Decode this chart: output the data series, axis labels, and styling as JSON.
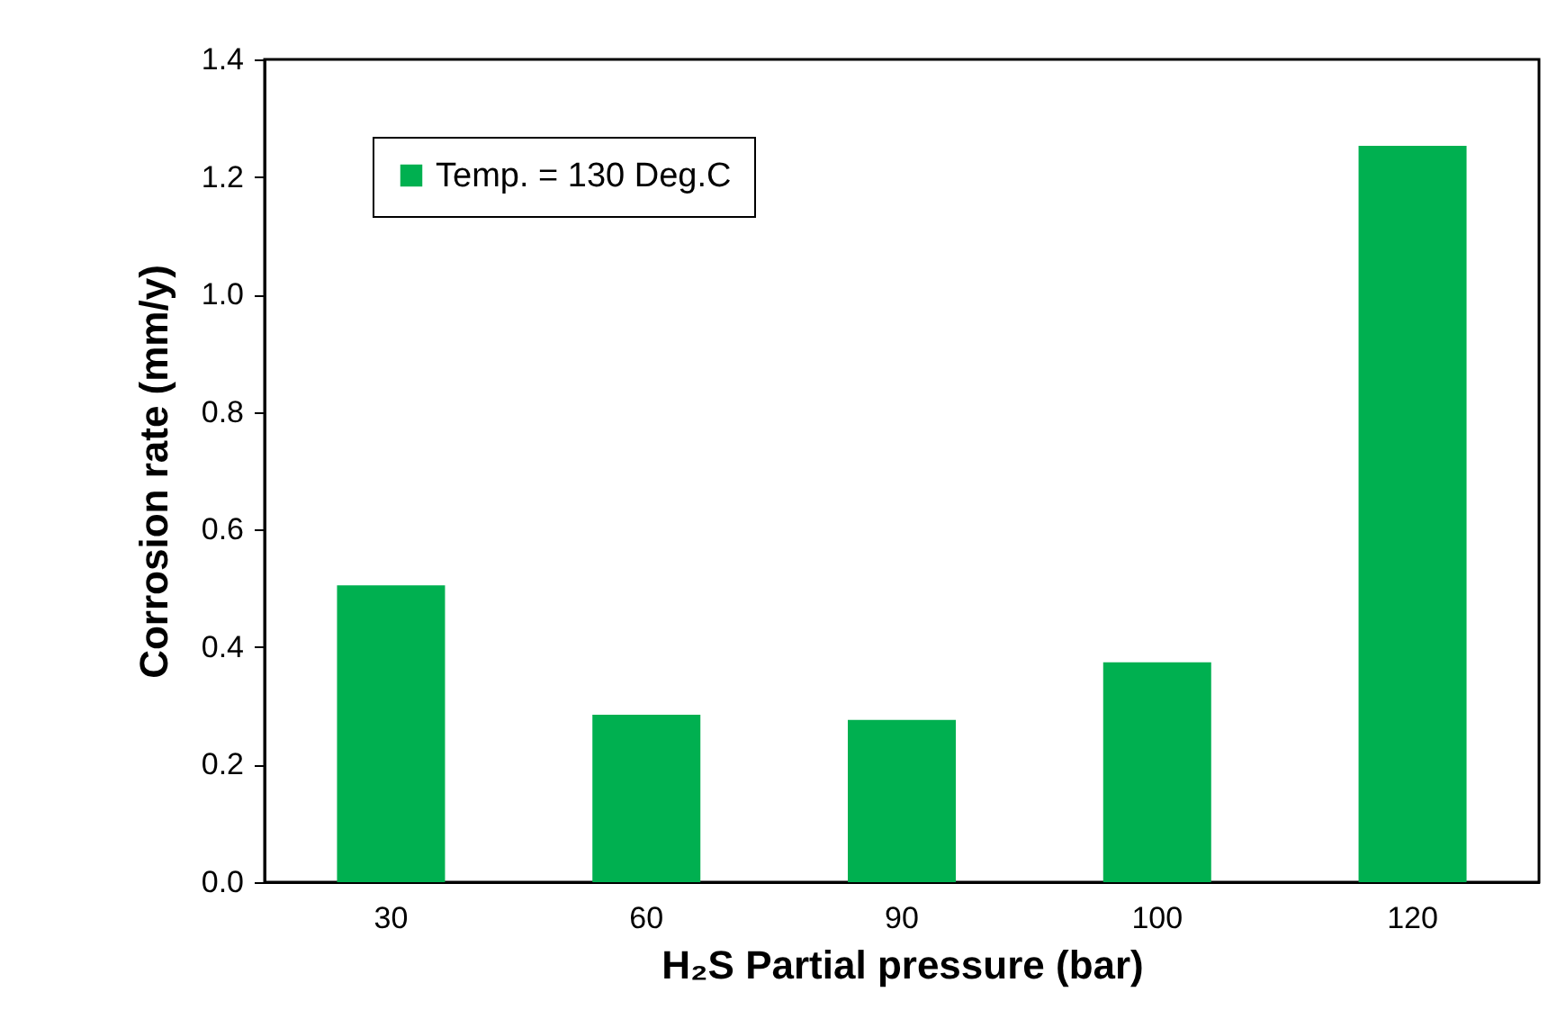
{
  "chart_data": {
    "type": "bar",
    "xlabel": "H₂S Partial pressure (bar)",
    "ylabel": "Corrosion rate (mm/y)",
    "categories": [
      "30",
      "60",
      "90",
      "100",
      "120"
    ],
    "series": [
      {
        "name": "Temp. = 130 Deg.C",
        "color": "#00b050",
        "values": [
          0.505,
          0.285,
          0.276,
          0.374,
          1.253
        ]
      }
    ],
    "ylim": [
      0,
      1.4
    ],
    "yticks": [
      {
        "value": 0,
        "label": "0.0"
      },
      {
        "value": 0.2,
        "label": "0.2"
      },
      {
        "value": 0.4,
        "label": "0.4"
      },
      {
        "value": 0.6,
        "label": "0.6"
      },
      {
        "value": 0.8,
        "label": "0.8"
      },
      {
        "value": 1.0,
        "label": "1.0"
      },
      {
        "value": 1.2,
        "label": "1.2"
      },
      {
        "value": 1.4,
        "label": "1.4"
      }
    ],
    "grid": false,
    "legend": "top left"
  }
}
